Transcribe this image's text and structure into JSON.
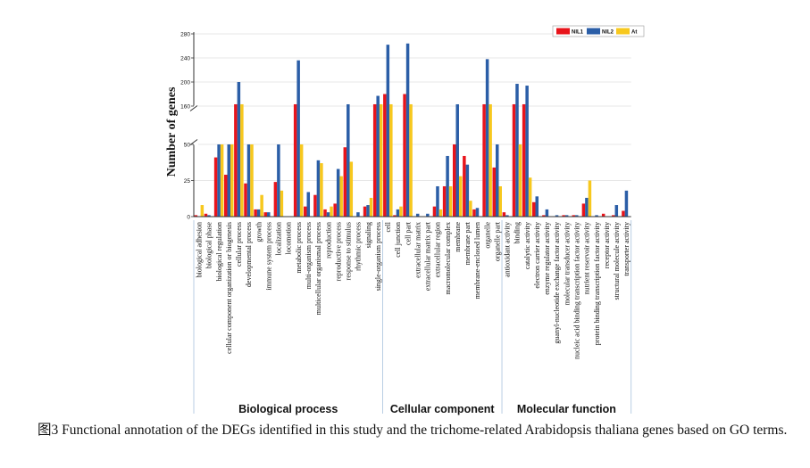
{
  "figure": {
    "caption": "图3 Functional annotation of the DEGs identified in this study and the trichome-related Arabidopsis thaliana genes based on GO terms."
  },
  "chart_data": {
    "type": "bar",
    "title": "",
    "xlabel": "",
    "ylabel": "Number of genes",
    "axis_break": {
      "lower_range": [
        0,
        50
      ],
      "upper_range": [
        160,
        280
      ]
    },
    "yticks": [
      0,
      25,
      50,
      160,
      200,
      240,
      280
    ],
    "legend_position": "top-right",
    "colors": {
      "NIL1": "#e8141b",
      "NIL2": "#2b5ea7",
      "At": "#f7c81e"
    },
    "categories": [
      "biological adhesion",
      "biological phase",
      "biological regulation",
      "cellular component organization or biogenesis",
      "cellular process",
      "developmental process",
      "growth",
      "immune system process",
      "localization",
      "locomotion",
      "metabolic process",
      "multi-organism process",
      "multicellular organismal process",
      "reproduction",
      "reproductive process",
      "response to stimulus",
      "rhythmic process",
      "signaling",
      "single-organism process",
      "cell",
      "cell junction",
      "cell part",
      "extracellular matrix",
      "extracellular matrix part",
      "extracellular region",
      "macromolecular complex",
      "membrane",
      "membrane part",
      "membrane-enclosed lumen",
      "organelle",
      "organelle part",
      "antioxidant activity",
      "binding",
      "catalytic activity",
      "electron carrier activity",
      "enzyme regulator activity",
      "guanyl-nucleotide exchange factor activity",
      "molecular transducer activity",
      "nucleic acid binding transcription factor activity",
      "nutrient reservoir activity",
      "protein binding transcription factor activity",
      "receptor activity",
      "structural molecule activity",
      "transporter activity"
    ],
    "groups": [
      {
        "name": "Biological process",
        "start": 0,
        "end": 18
      },
      {
        "name": "Cellular component",
        "start": 19,
        "end": 30
      },
      {
        "name": "Molecular function",
        "start": 31,
        "end": 43
      }
    ],
    "series": [
      {
        "name": "NIL1",
        "values": [
          1,
          2,
          41,
          29,
          163,
          23,
          5,
          3,
          24,
          0,
          163,
          7,
          15,
          5,
          9,
          48,
          0,
          7,
          163,
          180,
          1,
          180,
          0,
          0,
          7,
          21,
          54,
          42,
          5,
          163,
          34,
          3,
          163,
          163,
          10,
          1,
          0,
          1,
          1,
          9,
          0,
          2,
          1,
          4
        ]
      },
      {
        "name": "NIL2",
        "values": [
          0,
          1,
          66,
          55,
          200,
          57,
          5,
          3,
          57,
          0,
          236,
          17,
          39,
          3,
          33,
          163,
          3,
          8,
          177,
          262,
          5,
          264,
          2,
          2,
          21,
          42,
          163,
          36,
          6,
          238,
          52,
          1,
          197,
          194,
          14,
          5,
          1,
          1,
          1,
          13,
          1,
          0,
          8,
          18
        ]
      },
      {
        "name": "At",
        "values": [
          8,
          0,
          56,
          54,
          163,
          65,
          15,
          0,
          18,
          0,
          53,
          0,
          37,
          7,
          28,
          38,
          0,
          13,
          163,
          163,
          7,
          163,
          0,
          0,
          5,
          21,
          28,
          11,
          0,
          163,
          21,
          0,
          60,
          27,
          0,
          0,
          0,
          0,
          0,
          25,
          0,
          0,
          0,
          0
        ]
      }
    ]
  }
}
